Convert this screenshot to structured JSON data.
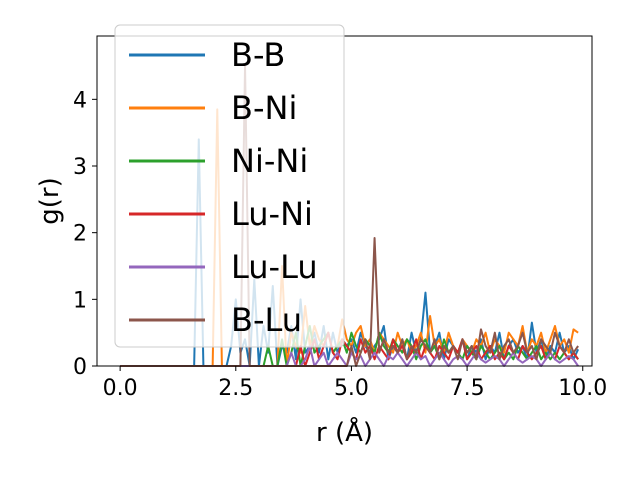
{
  "chart_data": {
    "type": "line",
    "title": "",
    "xlabel": "r (Å)",
    "ylabel": "g(r)",
    "xlim": [
      -0.5,
      10.2
    ],
    "ylim": [
      0,
      4.95
    ],
    "xticks": [
      0.0,
      2.5,
      5.0,
      7.5,
      10.0
    ],
    "xtick_labels": [
      "0.0",
      "2.5",
      "5.0",
      "7.5",
      "10.0"
    ],
    "yticks": [
      0,
      1,
      2,
      3,
      4
    ],
    "ytick_labels": [
      "0",
      "1",
      "2",
      "3",
      "4"
    ],
    "grid": false,
    "legend_position": "upper-left",
    "x": [
      0.0,
      0.1,
      0.2,
      0.3,
      0.4,
      0.5,
      0.6,
      0.7,
      0.8,
      0.9,
      1.0,
      1.1,
      1.2,
      1.3,
      1.4,
      1.5,
      1.6,
      1.7,
      1.8,
      1.9,
      2.0,
      2.1,
      2.2,
      2.3,
      2.4,
      2.5,
      2.6,
      2.7,
      2.8,
      2.9,
      3.0,
      3.1,
      3.2,
      3.3,
      3.4,
      3.5,
      3.6,
      3.7,
      3.8,
      3.9,
      4.0,
      4.1,
      4.2,
      4.3,
      4.4,
      4.5,
      4.6,
      4.7,
      4.8,
      4.9,
      5.0,
      5.1,
      5.2,
      5.3,
      5.4,
      5.5,
      5.6,
      5.7,
      5.8,
      5.9,
      6.0,
      6.1,
      6.2,
      6.3,
      6.4,
      6.5,
      6.6,
      6.7,
      6.8,
      6.9,
      7.0,
      7.1,
      7.2,
      7.3,
      7.4,
      7.5,
      7.6,
      7.7,
      7.8,
      7.9,
      8.0,
      8.1,
      8.2,
      8.3,
      8.4,
      8.5,
      8.6,
      8.7,
      8.8,
      8.9,
      9.0,
      9.1,
      9.2,
      9.3,
      9.4,
      9.5,
      9.6,
      9.7,
      9.8,
      9.9
    ],
    "series": [
      {
        "name": "B-B",
        "color": "#1f77b4",
        "values": [
          0,
          0,
          0,
          0,
          0,
          0,
          0,
          0,
          0,
          0,
          0,
          0,
          0,
          0,
          0,
          0,
          0,
          3.4,
          0,
          0,
          0,
          0,
          0,
          0,
          0.3,
          1.0,
          0.2,
          0.4,
          0,
          1.3,
          0,
          0.6,
          0.2,
          1.2,
          0,
          0.3,
          0.2,
          0.6,
          0.1,
          1.0,
          0.2,
          0.3,
          0.5,
          0.2,
          0.6,
          0.1,
          0.5,
          0.2,
          0.4,
          0.3,
          0.4,
          0.2,
          0.5,
          0.3,
          0.2,
          0.3,
          0.4,
          0.6,
          0.1,
          0.3,
          0.2,
          0.4,
          0.1,
          0.5,
          0.2,
          0.4,
          1.1,
          0.2,
          0.3,
          0.5,
          0.1,
          0.4,
          0.3,
          0.2,
          0.4,
          0.1,
          0.3,
          0.2,
          0.4,
          0.1,
          0.3,
          0.2,
          0.5,
          0.1,
          0.3,
          0.4,
          0.2,
          0.3,
          0.1,
          0.65,
          0.2,
          0.4,
          0.1,
          0.3,
          0.2,
          0.5,
          0.2,
          0.3,
          0.1,
          0.25
        ]
      },
      {
        "name": "B-Ni",
        "color": "#ff7f0e",
        "values": [
          0,
          0,
          0,
          0,
          0,
          0,
          0,
          0,
          0,
          0,
          0,
          0,
          0,
          0,
          0,
          0,
          0,
          0,
          0,
          0,
          0,
          3.85,
          0,
          0,
          0,
          0,
          0,
          0,
          0,
          0,
          0,
          0,
          0,
          0,
          0,
          1.5,
          0,
          0.5,
          0.3,
          0.2,
          0.9,
          0.3,
          0.6,
          0.4,
          0.3,
          0.5,
          0.2,
          0.3,
          0.7,
          0.4,
          0.3,
          0.5,
          0.6,
          0.3,
          0.4,
          0.2,
          0.5,
          0.4,
          0.3,
          0.2,
          0.5,
          0.3,
          0.4,
          0.2,
          0.3,
          0.5,
          0.2,
          0.75,
          0.3,
          0.4,
          0.2,
          0.5,
          0.3,
          0.2,
          0.4,
          0.3,
          0.2,
          0.4,
          0.3,
          0.5,
          0.2,
          0.4,
          0.3,
          0.2,
          0.5,
          0.4,
          0.3,
          0.6,
          0.2,
          0.4,
          0.3,
          0.5,
          0.2,
          0.4,
          0.6,
          0.3,
          0.4,
          0.2,
          0.55,
          0.5
        ]
      },
      {
        "name": "Ni-Ni",
        "color": "#2ca02c",
        "values": [
          0,
          0,
          0,
          0,
          0,
          0,
          0,
          0,
          0,
          0,
          0,
          0,
          0,
          0,
          0,
          0,
          0,
          0,
          0,
          0,
          0,
          0,
          0,
          0,
          0,
          0,
          0,
          0,
          0,
          0,
          0,
          0,
          0.3,
          0,
          0,
          0.4,
          0,
          0.2,
          0.5,
          0,
          0.3,
          0.6,
          0.2,
          0.3,
          0.4,
          0.5,
          0.2,
          0.3,
          0.4,
          0.2,
          0.5,
          0.3,
          0.2,
          0.4,
          0.3,
          0.2,
          0.5,
          0.3,
          0.2,
          0.4,
          0.3,
          0.2,
          0.4,
          0.3,
          0.1,
          0.3,
          0.4,
          0.2,
          0.3,
          0.1,
          0.4,
          0.2,
          0.3,
          0.2,
          0.1,
          0.3,
          0.2,
          0.1,
          0.3,
          0.2,
          0.1,
          0.2,
          0.3,
          0.1,
          0.2,
          0.1,
          0.3,
          0.2,
          0.1,
          0.2,
          0.3,
          0.1,
          0.2,
          0.1,
          0.2,
          0.1,
          0.2,
          0.1,
          0.2,
          0.1
        ]
      },
      {
        "name": "Lu-Ni",
        "color": "#d62728",
        "values": [
          0,
          0,
          0,
          0,
          0,
          0,
          0,
          0,
          0,
          0,
          0,
          0,
          0,
          0,
          0,
          0,
          0,
          0,
          0,
          0,
          0,
          0,
          0,
          0,
          0,
          0,
          0,
          0,
          0,
          0,
          0,
          0,
          0,
          0,
          0,
          0,
          0,
          0,
          0,
          0.3,
          0,
          0.2,
          0.4,
          0.1,
          0.3,
          0.5,
          0.2,
          0.1,
          0.4,
          0.3,
          0.2,
          0.1,
          0.4,
          0.2,
          0.3,
          0.1,
          0.3,
          0.2,
          0.1,
          0.4,
          0.2,
          0.3,
          0.1,
          0.2,
          0.4,
          0.1,
          0.3,
          0.2,
          0.1,
          0.3,
          0.2,
          0.1,
          0.3,
          0.2,
          0.4,
          0.1,
          0.2,
          0.3,
          0.1,
          0.2,
          0.3,
          0.1,
          0.2,
          0.1,
          0.3,
          0.2,
          0.1,
          0.3,
          0.2,
          0.1,
          0.2,
          0.3,
          0.1,
          0.2,
          0.1,
          0.3,
          0.2,
          0.1,
          0.2,
          0.1
        ]
      },
      {
        "name": "Lu-Lu",
        "color": "#9467bd",
        "values": [
          0,
          0,
          0,
          0,
          0,
          0,
          0,
          0,
          0,
          0,
          0,
          0,
          0,
          0,
          0,
          0,
          0,
          0,
          0,
          0,
          0,
          0,
          0,
          0,
          0,
          0,
          0,
          0,
          0,
          0,
          0,
          0,
          0,
          0,
          0,
          0,
          0,
          0.2,
          0,
          0,
          0.1,
          0.3,
          0,
          0.1,
          0.2,
          0,
          0.1,
          0.2,
          0.1,
          0,
          0.2,
          0.1,
          0.15,
          0,
          0.1,
          0.2,
          0.1,
          0,
          0.15,
          0.1,
          0.2,
          0.1,
          0,
          0.1,
          0.2,
          0.1,
          0.15,
          0,
          0.1,
          0.2,
          0.1,
          0,
          0.1,
          0.15,
          0.1,
          0,
          0.1,
          0.2,
          0.1,
          0.05,
          0.1,
          0.15,
          0.1,
          0,
          0.1,
          0.2,
          0.1,
          0.05,
          0.1,
          0.15,
          0.1,
          0,
          0.1,
          0.2,
          0.1,
          0.05,
          0.1,
          0.15,
          0.1,
          0
        ]
      },
      {
        "name": "B-Lu",
        "color": "#8c564b",
        "values": [
          0,
          0,
          0,
          0,
          0,
          0,
          0,
          0,
          0,
          0,
          0,
          0,
          0,
          0,
          0,
          0,
          0,
          0,
          0,
          0,
          0,
          0,
          0,
          0,
          0,
          0,
          0,
          4.5,
          0,
          0,
          0,
          0,
          0,
          0,
          0,
          0,
          0,
          0,
          0,
          0,
          0,
          0,
          0,
          0,
          0,
          0,
          0,
          0,
          0,
          0,
          0.3,
          0,
          0.2,
          0.4,
          0.1,
          1.92,
          0.2,
          0.4,
          0.2,
          0.3,
          0.2,
          0.4,
          0.1,
          0.3,
          0.2,
          0.4,
          0.3,
          0.2,
          0.4,
          0.1,
          0.3,
          0.2,
          0.3,
          0.1,
          0.4,
          0.2,
          0.3,
          0.1,
          0.55,
          0.3,
          0.2,
          0.5,
          0.1,
          0.3,
          0.4,
          0.2,
          0.3,
          0.5,
          0.2,
          0.3,
          0.1,
          0.4,
          0.3,
          0.2,
          0.5,
          0.3,
          0.2,
          0.4,
          0.2,
          0.3
        ]
      }
    ]
  }
}
